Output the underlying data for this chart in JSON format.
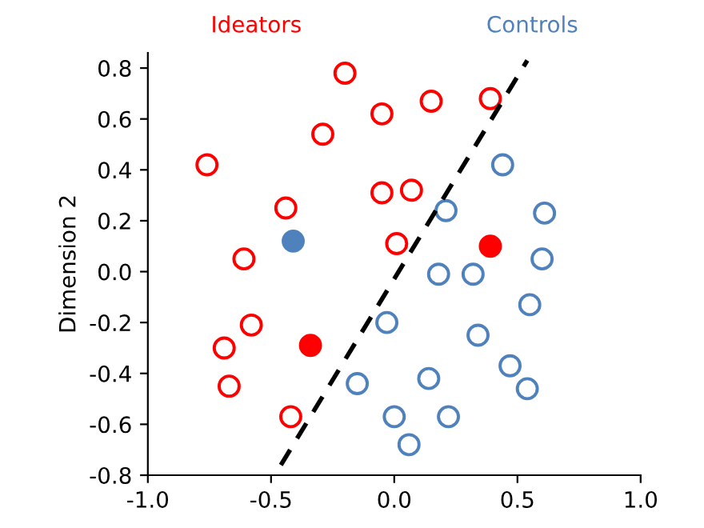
{
  "chart_data": {
    "type": "scatter",
    "ylabel": "Dimension 2",
    "xlim": [
      -1.0,
      1.0
    ],
    "ylim": [
      -0.8,
      0.86
    ],
    "xticks": [
      {
        "value": -1.0,
        "label": "-1.0"
      },
      {
        "value": -0.5,
        "label": "-0.5"
      },
      {
        "value": 0.0,
        "label": "0.0"
      },
      {
        "value": 0.5,
        "label": "0.5"
      },
      {
        "value": 1.0,
        "label": "1.0"
      }
    ],
    "yticks": [
      {
        "value": -0.8,
        "label": "-0.8"
      },
      {
        "value": -0.6,
        "label": "-0.6"
      },
      {
        "value": -0.4,
        "label": "-0.4"
      },
      {
        "value": -0.2,
        "label": "-0.2"
      },
      {
        "value": 0.0,
        "label": "0.0"
      },
      {
        "value": 0.2,
        "label": "0.2"
      },
      {
        "value": 0.4,
        "label": "0.4"
      },
      {
        "value": 0.6,
        "label": "0.6"
      },
      {
        "value": 0.8,
        "label": "0.8"
      }
    ],
    "grid": false,
    "legend": false,
    "marker": "circle",
    "series": [
      {
        "name": "Ideators",
        "color": "#ff0000",
        "x": [
          -0.2,
          -0.05,
          0.15,
          0.39,
          -0.29,
          -0.76,
          -0.44,
          -0.05,
          0.07,
          0.01,
          -0.61,
          -0.58,
          -0.69,
          -0.67,
          -0.42
        ],
        "values": [
          0.78,
          0.62,
          0.67,
          0.68,
          0.54,
          0.42,
          0.25,
          0.31,
          0.32,
          0.11,
          0.05,
          -0.21,
          -0.3,
          -0.45,
          -0.57
        ]
      },
      {
        "type": "bubble",
        "color": "#ff0000",
        "x": [
          0.39,
          -0.34
        ],
        "values": [
          0.1,
          -0.29
        ],
        "sizes": [
          1,
          1
        ]
      },
      {
        "name": "Controls",
        "color": "#4f81bd",
        "x": [
          0.44,
          0.21,
          0.61,
          0.6,
          0.18,
          0.32,
          0.55,
          -0.03,
          0.34,
          0.47,
          0.54,
          -0.15,
          0.14,
          0.0,
          0.22,
          0.06
        ],
        "values": [
          0.42,
          0.24,
          0.23,
          0.05,
          -0.01,
          -0.01,
          -0.13,
          -0.2,
          -0.25,
          -0.37,
          -0.46,
          -0.44,
          -0.42,
          -0.57,
          -0.57,
          -0.68
        ]
      },
      {
        "type": "bubble",
        "color": "#4f81bd",
        "x": [
          -0.41
        ],
        "values": [
          0.12
        ],
        "sizes": [
          1
        ]
      },
      {
        "type": "line",
        "color": "#000000",
        "line_style": "dashed",
        "marker": "none",
        "x": [
          -0.46,
          0.54
        ],
        "values": [
          -0.76,
          0.83
        ]
      }
    ]
  }
}
